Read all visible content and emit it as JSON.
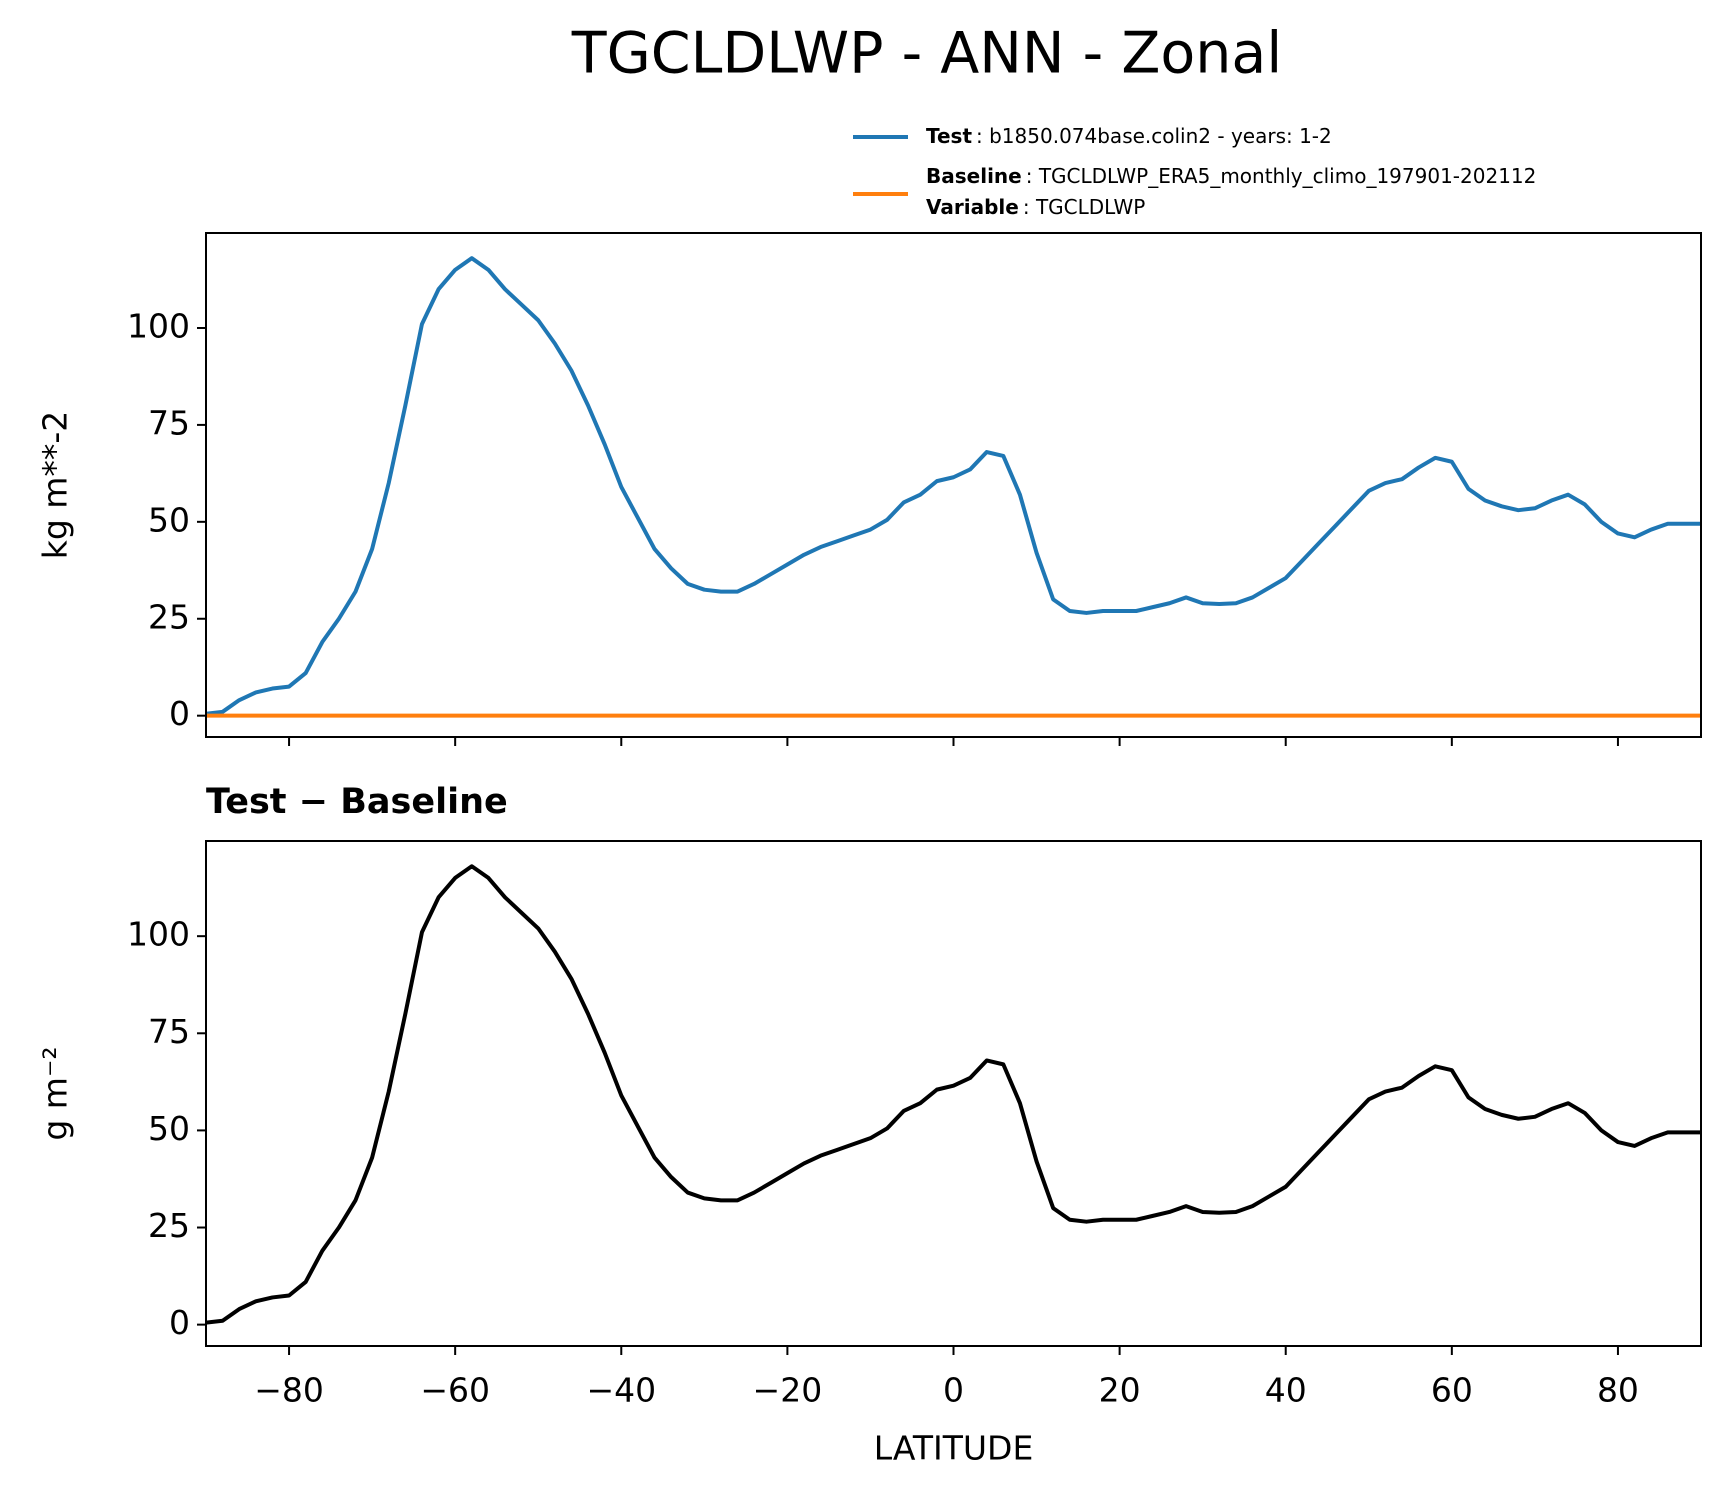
{
  "chart_data": [
    {
      "type": "line",
      "title": "TGCLDLWP - ANN - Zonal",
      "ylabel": "kg m**-2",
      "x": [
        -90,
        -88,
        -86,
        -84,
        -82,
        -80,
        -78,
        -76,
        -74,
        -72,
        -70,
        -68,
        -66,
        -64,
        -62,
        -60,
        -58,
        -56,
        -54,
        -52,
        -50,
        -48,
        -46,
        -44,
        -42,
        -40,
        -38,
        -36,
        -34,
        -32,
        -30,
        -28,
        -26,
        -24,
        -22,
        -20,
        -18,
        -16,
        -14,
        -12,
        -10,
        -8,
        -6,
        -4,
        -2,
        0,
        2,
        4,
        6,
        8,
        10,
        12,
        14,
        16,
        18,
        20,
        22,
        24,
        26,
        28,
        30,
        32,
        34,
        36,
        38,
        40,
        42,
        44,
        46,
        48,
        50,
        52,
        54,
        56,
        58,
        60,
        62,
        64,
        66,
        68,
        70,
        72,
        74,
        76,
        78,
        80,
        82,
        84,
        86,
        88,
        90
      ],
      "series": [
        {
          "name": "Test",
          "description": ": b1850.074base.colin2 - years: 1-2",
          "color": "#1f77b4",
          "values": [
            0.5,
            1,
            4,
            6,
            7,
            7.5,
            11,
            19,
            25,
            32,
            43,
            60,
            80,
            101,
            110,
            115,
            118,
            115,
            110,
            106,
            102,
            96,
            89,
            80,
            70,
            59,
            51,
            43,
            38,
            34,
            32.5,
            32,
            32,
            34,
            36.5,
            39,
            41.5,
            43.5,
            45,
            46.5,
            48,
            50.5,
            55,
            57,
            60.5,
            61.5,
            63.5,
            68,
            67,
            57,
            42,
            30,
            27,
            26.5,
            27,
            27,
            27,
            28,
            29,
            30.5,
            29,
            28.8,
            29,
            30.5,
            33,
            35.5,
            40,
            44.5,
            49,
            53.5,
            58,
            60,
            61,
            64,
            66.5,
            65.5,
            58.5,
            55.5,
            54,
            53,
            53.5,
            55.5,
            57,
            54.5,
            50,
            47,
            46,
            48,
            49.5,
            49.5,
            49.5
          ]
        },
        {
          "name": "Baseline",
          "description": ": TGCLDLWP_ERA5_monthly_climo_197901-202112",
          "extra_name": "Variable",
          "extra_description": ": TGCLDLWP",
          "color": "#ff7f0e",
          "values": [
            0,
            0,
            0,
            0,
            0,
            0,
            0,
            0,
            0,
            0,
            0,
            0,
            0,
            0,
            0,
            0,
            0,
            0,
            0,
            0,
            0,
            0,
            0,
            0,
            0,
            0,
            0,
            0,
            0,
            0,
            0,
            0,
            0,
            0,
            0,
            0,
            0,
            0,
            0,
            0,
            0,
            0,
            0,
            0,
            0,
            0,
            0,
            0,
            0,
            0,
            0,
            0,
            0,
            0,
            0,
            0,
            0,
            0,
            0,
            0,
            0,
            0,
            0,
            0,
            0,
            0,
            0,
            0,
            0,
            0,
            0,
            0,
            0,
            0,
            0,
            0,
            0,
            0,
            0,
            0,
            0,
            0,
            0,
            0,
            0,
            0,
            0,
            0,
            0,
            0,
            0
          ]
        }
      ],
      "xlim": [
        -90,
        90
      ],
      "xticks": [
        -80,
        -60,
        -40,
        -20,
        0,
        20,
        40,
        60,
        80
      ],
      "ylim": [
        -5.5,
        124.5
      ],
      "yticks": [
        0,
        25,
        50,
        75,
        100
      ]
    },
    {
      "type": "line",
      "title": "Test − Baseline",
      "ylabel": "g m⁻²",
      "xlabel": "LATITUDE",
      "x": [
        -90,
        -88,
        -86,
        -84,
        -82,
        -80,
        -78,
        -76,
        -74,
        -72,
        -70,
        -68,
        -66,
        -64,
        -62,
        -60,
        -58,
        -56,
        -54,
        -52,
        -50,
        -48,
        -46,
        -44,
        -42,
        -40,
        -38,
        -36,
        -34,
        -32,
        -30,
        -28,
        -26,
        -24,
        -22,
        -20,
        -18,
        -16,
        -14,
        -12,
        -10,
        -8,
        -6,
        -4,
        -2,
        0,
        2,
        4,
        6,
        8,
        10,
        12,
        14,
        16,
        18,
        20,
        22,
        24,
        26,
        28,
        30,
        32,
        34,
        36,
        38,
        40,
        42,
        44,
        46,
        48,
        50,
        52,
        54,
        56,
        58,
        60,
        62,
        64,
        66,
        68,
        70,
        72,
        74,
        76,
        78,
        80,
        82,
        84,
        86,
        88,
        90
      ],
      "series": [
        {
          "color": "#000000",
          "values": [
            0.5,
            1,
            4,
            6,
            7,
            7.5,
            11,
            19,
            25,
            32,
            43,
            60,
            80,
            101,
            110,
            115,
            118,
            115,
            110,
            106,
            102,
            96,
            89,
            80,
            70,
            59,
            51,
            43,
            38,
            34,
            32.5,
            32,
            32,
            34,
            36.5,
            39,
            41.5,
            43.5,
            45,
            46.5,
            48,
            50.5,
            55,
            57,
            60.5,
            61.5,
            63.5,
            68,
            67,
            57,
            42,
            30,
            27,
            26.5,
            27,
            27,
            27,
            28,
            29,
            30.5,
            29,
            28.8,
            29,
            30.5,
            33,
            35.5,
            40,
            44.5,
            49,
            53.5,
            58,
            60,
            61,
            64,
            66.5,
            65.5,
            58.5,
            55.5,
            54,
            53,
            53.5,
            55.5,
            57,
            54.5,
            50,
            47,
            46,
            48,
            49.5,
            49.5,
            49.5
          ]
        }
      ],
      "xlim": [
        -90,
        90
      ],
      "xticks": [
        -80,
        -60,
        -40,
        -20,
        0,
        20,
        40,
        60,
        80
      ],
      "ylim": [
        -5.5,
        124.5
      ],
      "yticks": [
        0,
        25,
        50,
        75,
        100
      ]
    }
  ]
}
